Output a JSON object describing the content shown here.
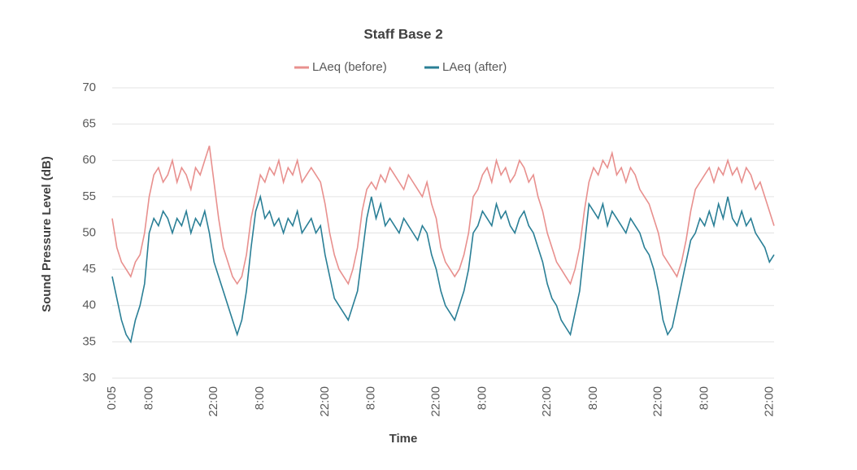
{
  "chart_data": {
    "type": "line",
    "title": "Staff Base 2",
    "x_label": "Time",
    "y_label": "Sound Pressure Level (dB)",
    "categories": [
      "0:05",
      null,
      null,
      null,
      null,
      null,
      null,
      null,
      "8:00",
      null,
      null,
      null,
      null,
      null,
      null,
      null,
      null,
      null,
      null,
      null,
      null,
      null,
      "22:00",
      null,
      null,
      null,
      null,
      null,
      null,
      null,
      null,
      null,
      "8:00",
      null,
      null,
      null,
      null,
      null,
      null,
      null,
      null,
      null,
      null,
      null,
      null,
      null,
      "22:00",
      null,
      null,
      null,
      null,
      null,
      null,
      null,
      null,
      null,
      "8:00",
      null,
      null,
      null,
      null,
      null,
      null,
      null,
      null,
      null,
      null,
      null,
      null,
      null,
      "22:00",
      null,
      null,
      null,
      null,
      null,
      null,
      null,
      null,
      null,
      "8:00",
      null,
      null,
      null,
      null,
      null,
      null,
      null,
      null,
      null,
      null,
      null,
      null,
      null,
      "22:00",
      null,
      null,
      null,
      null,
      null,
      null,
      null,
      null,
      null,
      "8:00",
      null,
      null,
      null,
      null,
      null,
      null,
      null,
      null,
      null,
      null,
      null,
      null,
      null,
      "22:00",
      null,
      null,
      null,
      null,
      null,
      null,
      null,
      null,
      null,
      "8:00",
      null,
      null,
      null,
      null,
      null,
      null,
      null,
      null,
      null,
      null,
      null,
      null,
      null,
      "22:00",
      null
    ],
    "series": [
      {
        "name": "LAeq (before)",
        "color": "#e8908e",
        "values": [
          52,
          48,
          46,
          45,
          44,
          46,
          47,
          50,
          55,
          58,
          59,
          57,
          58,
          60,
          57,
          59,
          58,
          56,
          59,
          58,
          60,
          62,
          57,
          52,
          48,
          46,
          44,
          43,
          44,
          47,
          52,
          55,
          58,
          57,
          59,
          58,
          60,
          57,
          59,
          58,
          60,
          57,
          58,
          59,
          58,
          57,
          54,
          50,
          47,
          45,
          44,
          43,
          45,
          48,
          53,
          56,
          57,
          56,
          58,
          57,
          59,
          58,
          57,
          56,
          58,
          57,
          56,
          55,
          57,
          54,
          52,
          48,
          46,
          45,
          44,
          45,
          47,
          50,
          55,
          56,
          58,
          59,
          57,
          60,
          58,
          59,
          57,
          58,
          60,
          59,
          57,
          58,
          55,
          53,
          50,
          48,
          46,
          45,
          44,
          43,
          45,
          48,
          53,
          57,
          59,
          58,
          60,
          59,
          61,
          58,
          59,
          57,
          59,
          58,
          56,
          55,
          54,
          52,
          50,
          47,
          46,
          45,
          44,
          46,
          49,
          53,
          56,
          57,
          58,
          59,
          57,
          59,
          58,
          60,
          58,
          59,
          57,
          59,
          58,
          56,
          57,
          55,
          53,
          51
        ]
      },
      {
        "name": "LAeq (after)",
        "color": "#2a7f96",
        "values": [
          44,
          41,
          38,
          36,
          35,
          38,
          40,
          43,
          50,
          52,
          51,
          53,
          52,
          50,
          52,
          51,
          53,
          50,
          52,
          51,
          53,
          50,
          46,
          44,
          42,
          40,
          38,
          36,
          38,
          42,
          48,
          53,
          55,
          52,
          53,
          51,
          52,
          50,
          52,
          51,
          53,
          50,
          51,
          52,
          50,
          51,
          47,
          44,
          41,
          40,
          39,
          38,
          40,
          42,
          47,
          52,
          55,
          52,
          54,
          51,
          52,
          51,
          50,
          52,
          51,
          50,
          49,
          51,
          50,
          47,
          45,
          42,
          40,
          39,
          38,
          40,
          42,
          45,
          50,
          51,
          53,
          52,
          51,
          54,
          52,
          53,
          51,
          50,
          52,
          53,
          51,
          50,
          48,
          46,
          43,
          41,
          40,
          38,
          37,
          36,
          39,
          42,
          48,
          54,
          53,
          52,
          54,
          51,
          53,
          52,
          51,
          50,
          52,
          51,
          50,
          48,
          47,
          45,
          42,
          38,
          36,
          37,
          40,
          43,
          46,
          49,
          50,
          52,
          51,
          53,
          51,
          54,
          52,
          55,
          52,
          51,
          53,
          51,
          52,
          50,
          49,
          48,
          46,
          47
        ]
      }
    ],
    "ylim": [
      30,
      70
    ],
    "yticks": [
      30,
      35,
      40,
      45,
      50,
      55,
      60,
      65,
      70
    ],
    "grid": true,
    "legend": "top"
  }
}
